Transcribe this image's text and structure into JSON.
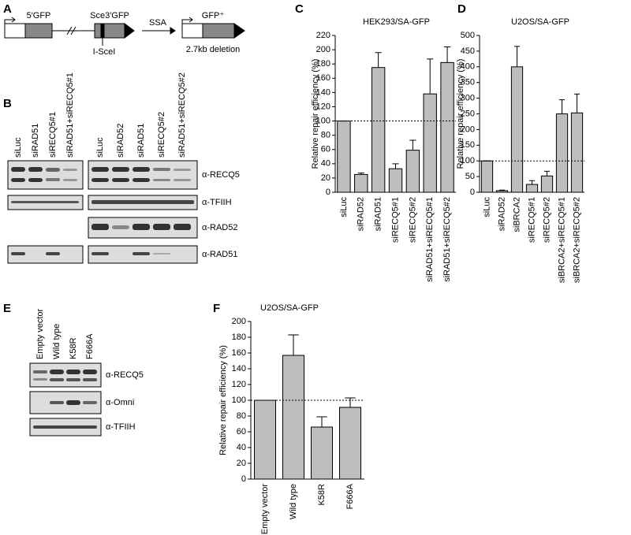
{
  "panel_labels": [
    "A",
    "B",
    "C",
    "D",
    "E",
    "F"
  ],
  "diagram": {
    "labels": [
      "5′GFP",
      "Sce3′GFP",
      "SSA",
      "GFP⁺",
      "I-SceI",
      "2.7kb deletion"
    ]
  },
  "blot_b": {
    "lanes_left": [
      "siLuc",
      "siRAD51",
      "siRECQ5#1",
      "siRAD51+siRECQ5#1"
    ],
    "lanes_right": [
      "siLuc",
      "siRAD52",
      "siRAD51",
      "siRECQ5#2",
      "siRAD51+siRECQ5#2"
    ],
    "antibodies": [
      "α-RECQ5",
      "α-TFIIH",
      "α-RAD52",
      "α-RAD51"
    ]
  },
  "blot_e": {
    "lanes": [
      "Empty vector",
      "Wild type",
      "K58R",
      "F666A"
    ],
    "antibodies": [
      "α-RECQ5",
      "α-Omni",
      "α-TFIIH"
    ]
  },
  "chart_data": [
    {
      "type": "bar",
      "title": "HEK293/SA-GFP",
      "y_label": "Relative repair efficiency (%)",
      "categories": [
        "siLuc",
        "siRAD52",
        "siRAD51",
        "siRECQ5#1",
        "siRECQ5#2",
        "siRAD51+siRECQ5#1",
        "siRAD51+siRECQ5#2"
      ],
      "values": [
        100,
        25,
        175,
        33,
        59,
        138,
        182
      ],
      "errors": [
        0,
        2,
        21,
        7,
        14,
        49,
        22
      ],
      "color": "#bdbdbd",
      "reference": 100,
      "ylim": [
        0,
        220
      ],
      "yticks": [
        0,
        20,
        40,
        60,
        80,
        100,
        120,
        140,
        160,
        180,
        200,
        220
      ]
    },
    {
      "type": "bar",
      "title": "U2OS/SA-GFP",
      "y_label": "Relative repair efficiency (%)",
      "categories": [
        "siLuc",
        "siRAD52",
        "siBRCA2",
        "siRECQ5#1",
        "siRECQ5#2",
        "siBRCA2+siRECQ5#1",
        "siBRCA2+siRECQ5#2"
      ],
      "values": [
        100,
        5,
        400,
        25,
        52,
        250,
        253
      ],
      "errors": [
        0,
        2,
        65,
        12,
        15,
        45,
        60
      ],
      "color": "#bdbdbd",
      "reference": 100,
      "ylim": [
        0,
        500
      ],
      "yticks": [
        0,
        50,
        100,
        150,
        200,
        250,
        300,
        350,
        400,
        450,
        500
      ]
    },
    {
      "type": "bar",
      "title": "U2OS/SA-GFP",
      "y_label": "Relative repair efficiency (%)",
      "categories": [
        "Empty vector",
        "Wild type",
        "K58R",
        "F666A"
      ],
      "values": [
        100,
        157,
        66,
        91
      ],
      "errors": [
        0,
        26,
        13,
        12
      ],
      "color": "#bdbdbd",
      "reference": 100,
      "ylim": [
        0,
        200
      ],
      "yticks": [
        0,
        20,
        40,
        60,
        80,
        100,
        120,
        140,
        160,
        180,
        200
      ]
    }
  ]
}
